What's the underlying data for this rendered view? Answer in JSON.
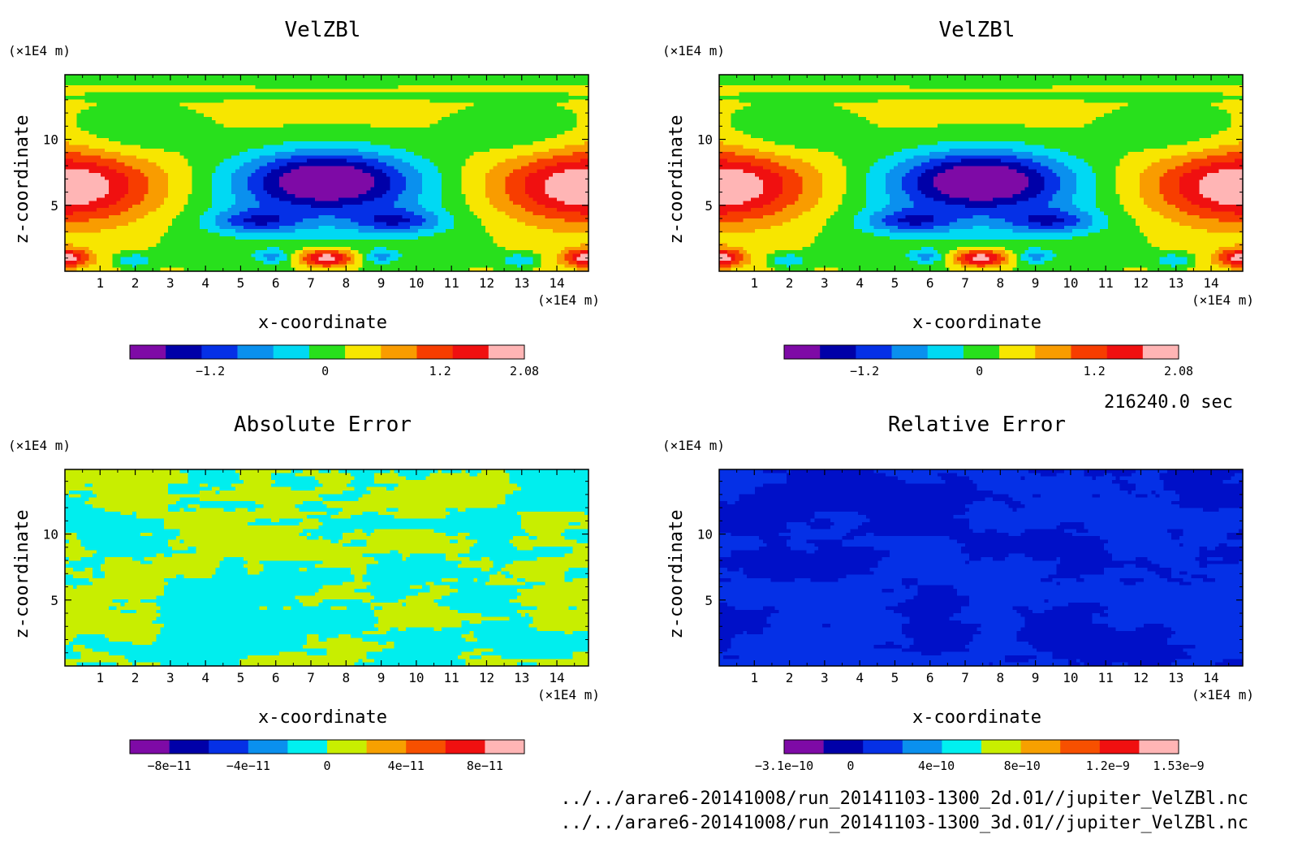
{
  "chart_data": [
    {
      "type": "heatmap",
      "title": "VelZBl",
      "xlabel": "x-coordinate",
      "ylabel": "z-coordinate",
      "x_unit": "(×1E4 m)",
      "y_unit": "(×1E4 m)",
      "xlim": [
        0,
        14.9
      ],
      "ylim": [
        0,
        14.9
      ],
      "x_ticks": [
        1,
        2,
        3,
        4,
        5,
        6,
        7,
        8,
        9,
        10,
        11,
        12,
        13,
        14
      ],
      "y_ticks": [
        5,
        10
      ],
      "field": "velzbl",
      "colorbar": {
        "colors": [
          "#7e0aa6",
          "#0000a8",
          "#0530e6",
          "#0a90ee",
          "#00d9f3",
          "#28e01c",
          "#f7e600",
          "#f99c00",
          "#f73d00",
          "#f01010",
          "#ffb5b5"
        ],
        "tick_values": [
          -1.2,
          0,
          1.2,
          2.08
        ],
        "tick_labels": [
          "−1.2",
          "0",
          "1.2",
          "2.08"
        ],
        "range": [
          -2.04,
          2.08
        ]
      }
    },
    {
      "type": "heatmap",
      "title": "VelZBl",
      "xlabel": "x-coordinate",
      "ylabel": "z-coordinate",
      "x_unit": "(×1E4 m)",
      "y_unit": "(×1E4 m)",
      "xlim": [
        0,
        14.9
      ],
      "ylim": [
        0,
        14.9
      ],
      "x_ticks": [
        1,
        2,
        3,
        4,
        5,
        6,
        7,
        8,
        9,
        10,
        11,
        12,
        13,
        14
      ],
      "y_ticks": [
        5,
        10
      ],
      "field": "velzbl",
      "colorbar": {
        "colors": [
          "#7e0aa6",
          "#0000a8",
          "#0530e6",
          "#0a90ee",
          "#00d9f3",
          "#28e01c",
          "#f7e600",
          "#f99c00",
          "#f73d00",
          "#f01010",
          "#ffb5b5"
        ],
        "tick_values": [
          -1.2,
          0,
          1.2,
          2.08
        ],
        "tick_labels": [
          "−1.2",
          "0",
          "1.2",
          "2.08"
        ],
        "range": [
          -2.04,
          2.08
        ]
      }
    },
    {
      "type": "heatmap",
      "title": "Absolute Error",
      "xlabel": "x-coordinate",
      "ylabel": "z-coordinate",
      "x_unit": "(×1E4 m)",
      "y_unit": "(×1E4 m)",
      "xlim": [
        0,
        14.9
      ],
      "ylim": [
        0,
        14.9
      ],
      "x_ticks": [
        1,
        2,
        3,
        4,
        5,
        6,
        7,
        8,
        9,
        10,
        11,
        12,
        13,
        14
      ],
      "y_ticks": [
        5,
        10
      ],
      "field": "abs_noise",
      "field_levels": [
        "#00eeee",
        "#c8ee00"
      ],
      "colorbar": {
        "colors": [
          "#7e0aa6",
          "#0000a8",
          "#0530e6",
          "#0a90ee",
          "#00f0f0",
          "#c8ee00",
          "#f7a000",
          "#f75000",
          "#f01010",
          "#ffb5b5"
        ],
        "tick_values": [
          -8e-11,
          -4e-11,
          0,
          4e-11,
          8e-11
        ],
        "tick_labels": [
          "−8e−11",
          "−4e−11",
          "0",
          "4e−11",
          "8e−11"
        ],
        "range": [
          -1e-10,
          1e-10
        ]
      }
    },
    {
      "type": "heatmap",
      "title": "Relative Error",
      "xlabel": "x-coordinate",
      "ylabel": "z-coordinate",
      "x_unit": "(×1E4 m)",
      "y_unit": "(×1E4 m)",
      "xlim": [
        0,
        14.9
      ],
      "ylim": [
        0,
        14.9
      ],
      "x_ticks": [
        1,
        2,
        3,
        4,
        5,
        6,
        7,
        8,
        9,
        10,
        11,
        12,
        13,
        14
      ],
      "y_ticks": [
        5,
        10
      ],
      "field": "rel_noise",
      "field_levels": [
        "#0530e6",
        "#0010c8"
      ],
      "colorbar": {
        "colors": [
          "#7e0aa6",
          "#0000a8",
          "#0530e6",
          "#0a90ee",
          "#00f0f0",
          "#c8ee00",
          "#f7a000",
          "#f75000",
          "#f01010",
          "#ffb5b5"
        ],
        "tick_values": [
          -3.1e-10,
          0,
          4e-10,
          8e-10,
          1.2e-09,
          1.53e-09
        ],
        "tick_labels": [
          "−3.1e−10",
          "0",
          "4e−10",
          "8e−10",
          "1.2e−9",
          "1.53e−9"
        ],
        "range": [
          -3.1e-10,
          1.53e-09
        ]
      }
    }
  ],
  "time_label": "216240.0 sec",
  "footer": {
    "line1": "../../arare6-20141008/run_20141103-1300_2d.01//jupiter_VelZBl.nc",
    "line2": "../../arare6-20141008/run_20141103-1300_3d.01//jupiter_VelZBl.nc"
  }
}
